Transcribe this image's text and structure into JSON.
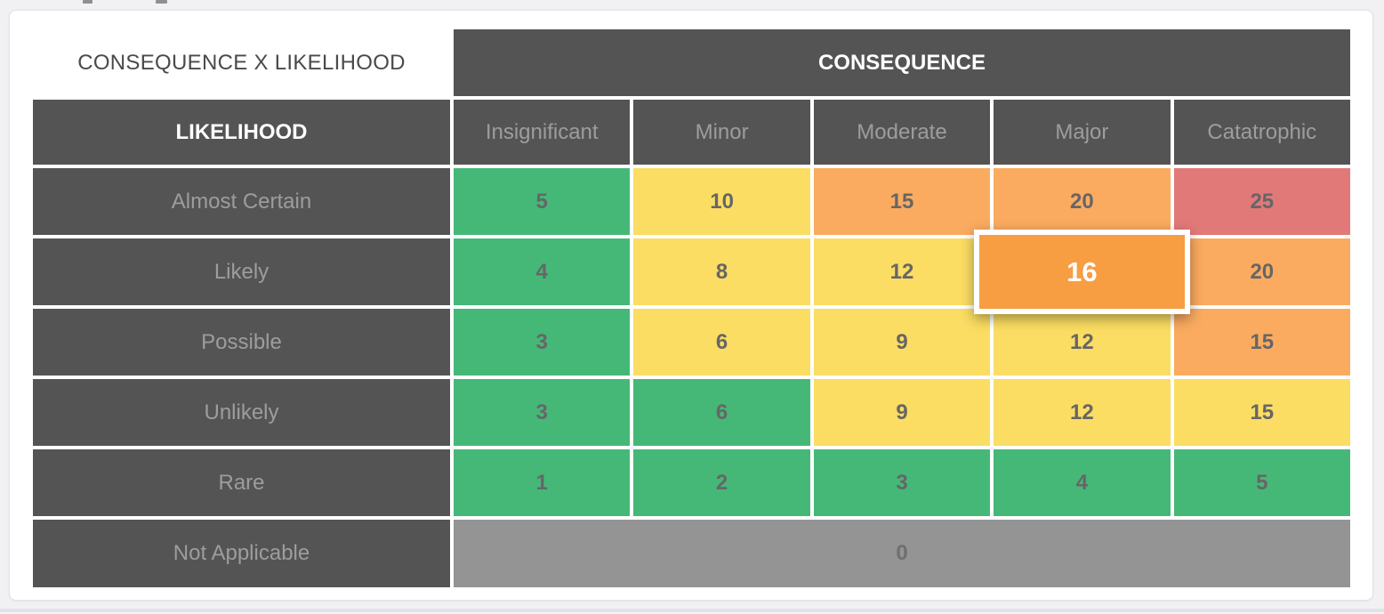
{
  "matrix": {
    "corner_label": "CONSEQUENCE X LIKELIHOOD",
    "consequence_header": "CONSEQUENCE",
    "likelihood_header": "LIKELIHOOD",
    "columns": [
      "Insignificant",
      "Minor",
      "Moderate",
      "Major",
      "Catatrophic"
    ],
    "rows": [
      {
        "label": "Almost Certain",
        "cells": [
          {
            "value": "5",
            "level": "green"
          },
          {
            "value": "10",
            "level": "yellow"
          },
          {
            "value": "15",
            "level": "orange"
          },
          {
            "value": "20",
            "level": "orange"
          },
          {
            "value": "25",
            "level": "red"
          }
        ]
      },
      {
        "label": "Likely",
        "cells": [
          {
            "value": "4",
            "level": "green"
          },
          {
            "value": "8",
            "level": "yellow"
          },
          {
            "value": "12",
            "level": "yellow"
          },
          {
            "value": "16",
            "level": "highlight",
            "selected": true
          },
          {
            "value": "20",
            "level": "orange"
          }
        ]
      },
      {
        "label": "Possible",
        "cells": [
          {
            "value": "3",
            "level": "green"
          },
          {
            "value": "6",
            "level": "yellow"
          },
          {
            "value": "9",
            "level": "yellow"
          },
          {
            "value": "12",
            "level": "yellow"
          },
          {
            "value": "15",
            "level": "orange"
          }
        ]
      },
      {
        "label": "Unlikely",
        "cells": [
          {
            "value": "3",
            "level": "green"
          },
          {
            "value": "6",
            "level": "green"
          },
          {
            "value": "9",
            "level": "yellow"
          },
          {
            "value": "12",
            "level": "yellow"
          },
          {
            "value": "15",
            "level": "yellow"
          }
        ]
      },
      {
        "label": "Rare",
        "cells": [
          {
            "value": "1",
            "level": "green"
          },
          {
            "value": "2",
            "level": "green"
          },
          {
            "value": "3",
            "level": "green"
          },
          {
            "value": "4",
            "level": "green"
          },
          {
            "value": "5",
            "level": "green"
          }
        ]
      }
    ],
    "na_row": {
      "label": "Not Applicable",
      "value": "0"
    },
    "colors": {
      "header_dark": "#545454",
      "green": "#45b878",
      "yellow": "#fbdd63",
      "orange": "#faab60",
      "red": "#e27979",
      "highlight": "#f79d42",
      "na_gray": "#949494"
    }
  }
}
